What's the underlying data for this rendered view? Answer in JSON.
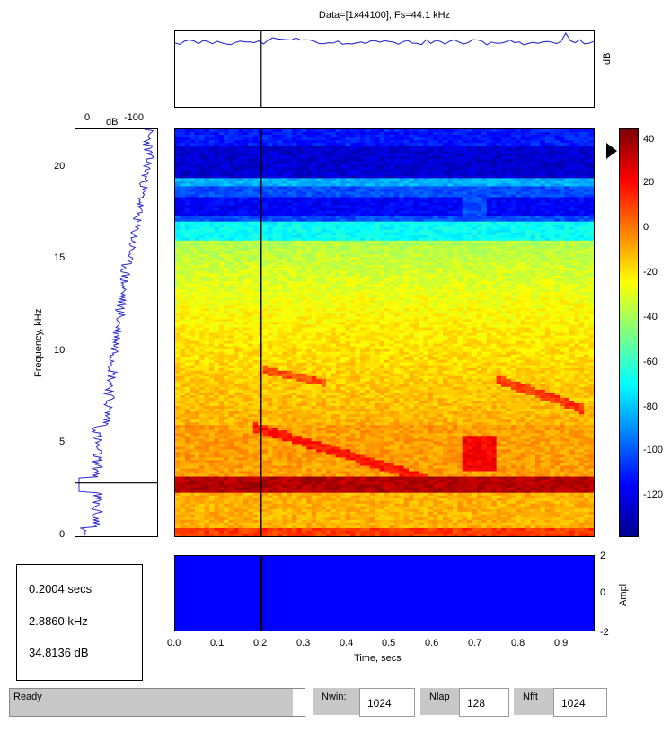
{
  "title": "Data=[1x44100], Fs=44.1 kHz",
  "top_panel": {
    "ylabel": "dB"
  },
  "left_panel": {
    "xlabel": "dB",
    "x_ticks": [
      "0",
      "-100"
    ],
    "ylabel": "Frequency, kHz",
    "y_ticks": [
      "20",
      "15",
      "10",
      "5",
      "0"
    ]
  },
  "colorbar": {
    "ticks": [
      "40",
      "20",
      "0",
      "-20",
      "-40",
      "-60",
      "-80",
      "-100",
      "-120"
    ],
    "range": [
      -135,
      45
    ],
    "marker_value": 40
  },
  "bottom_panel": {
    "ylabel": "Ampl",
    "y_ticks": [
      "2",
      "0",
      "-2"
    ],
    "xlabel": "Time, secs",
    "x_ticks": [
      "0.0",
      "0.1",
      "0.2",
      "0.3",
      "0.4",
      "0.5",
      "0.6",
      "0.7",
      "0.8",
      "0.9"
    ]
  },
  "cursor": {
    "time": 0.2004,
    "freq_khz": 2.886
  },
  "readout": {
    "time": "0.2004 secs",
    "freq": "2.8860 kHz",
    "level": "34.8136 dB"
  },
  "status_bar": {
    "status": "Ready",
    "nwin_label": "Nwin:",
    "nwin_value": "1024",
    "nlap_label": "Nlap",
    "nlap_value": "128",
    "nfft_label": "Nfft",
    "nfft_value": "1024"
  },
  "colors": {
    "waveform": "#0000ff",
    "line": "#2a2ad0"
  }
}
